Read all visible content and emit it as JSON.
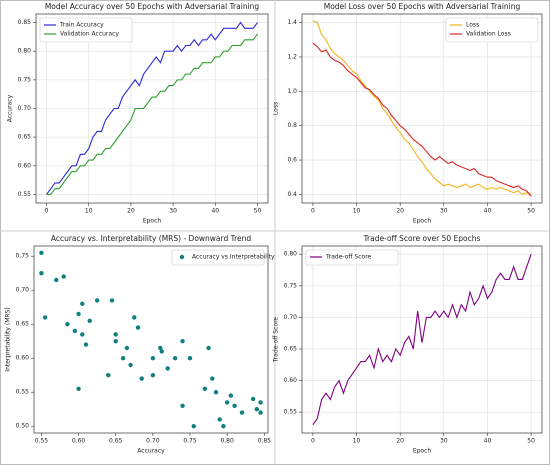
{
  "chart_data": [
    {
      "type": "line",
      "title": "Model Accuracy over 50 Epochs with Adversarial Training",
      "x_label": "Epoch",
      "y_label": "Accuracy",
      "x": [
        0,
        1,
        2,
        3,
        4,
        5,
        6,
        7,
        8,
        9,
        10,
        11,
        12,
        13,
        14,
        15,
        16,
        17,
        18,
        19,
        20,
        21,
        22,
        23,
        24,
        25,
        26,
        27,
        28,
        29,
        30,
        31,
        32,
        33,
        34,
        35,
        36,
        37,
        38,
        39,
        40,
        41,
        42,
        43,
        44,
        45,
        46,
        47,
        48,
        49,
        50
      ],
      "series": [
        {
          "name": "Train Accuracy",
          "color": "#2b2bd6",
          "values": [
            0.55,
            0.56,
            0.57,
            0.57,
            0.58,
            0.59,
            0.6,
            0.6,
            0.62,
            0.62,
            0.63,
            0.65,
            0.66,
            0.66,
            0.68,
            0.69,
            0.7,
            0.7,
            0.72,
            0.73,
            0.74,
            0.75,
            0.74,
            0.76,
            0.77,
            0.78,
            0.79,
            0.78,
            0.8,
            0.8,
            0.8,
            0.81,
            0.8,
            0.81,
            0.81,
            0.82,
            0.81,
            0.82,
            0.82,
            0.83,
            0.82,
            0.83,
            0.84,
            0.84,
            0.84,
            0.84,
            0.85,
            0.84,
            0.84,
            0.84,
            0.85
          ]
        },
        {
          "name": "Validation Accuracy",
          "color": "#2ca02c",
          "values": [
            0.55,
            0.55,
            0.56,
            0.56,
            0.57,
            0.58,
            0.59,
            0.59,
            0.6,
            0.6,
            0.61,
            0.61,
            0.62,
            0.62,
            0.63,
            0.63,
            0.64,
            0.65,
            0.66,
            0.67,
            0.68,
            0.7,
            0.7,
            0.7,
            0.71,
            0.72,
            0.72,
            0.73,
            0.73,
            0.74,
            0.74,
            0.75,
            0.75,
            0.76,
            0.76,
            0.77,
            0.77,
            0.78,
            0.78,
            0.78,
            0.79,
            0.79,
            0.8,
            0.8,
            0.81,
            0.81,
            0.81,
            0.82,
            0.82,
            0.82,
            0.83
          ]
        }
      ],
      "xlim": [
        -2.5,
        52.5
      ],
      "xticks": [
        0,
        10,
        20,
        30,
        40,
        50
      ],
      "ylim": [
        0.535,
        0.865
      ],
      "yticks": [
        0.55,
        {
          "value": 0.6,
          "label": "0.60"
        },
        0.65,
        {
          "value": 0.7,
          "label": "0.70"
        },
        0.75,
        {
          "value": 0.8,
          "label": "0.80"
        },
        0.85
      ],
      "grid": true,
      "legend": "upper-left"
    },
    {
      "type": "line",
      "title": "Model Loss over 50 Epochs with Adversarial Training",
      "x_label": "Epoch",
      "y_label": "Loss",
      "x": [
        0,
        1,
        2,
        3,
        4,
        5,
        6,
        7,
        8,
        9,
        10,
        11,
        12,
        13,
        14,
        15,
        16,
        17,
        18,
        19,
        20,
        21,
        22,
        23,
        24,
        25,
        26,
        27,
        28,
        29,
        30,
        31,
        32,
        33,
        34,
        35,
        36,
        37,
        38,
        39,
        40,
        41,
        42,
        43,
        44,
        45,
        46,
        47,
        48,
        49,
        50
      ],
      "series": [
        {
          "name": "Loss",
          "color": "#f5b31b",
          "values": [
            1.41,
            1.4,
            1.33,
            1.3,
            1.25,
            1.22,
            1.2,
            1.18,
            1.15,
            1.12,
            1.1,
            1.06,
            1.03,
            1.0,
            0.97,
            0.95,
            0.9,
            0.87,
            0.83,
            0.79,
            0.76,
            0.72,
            0.7,
            0.66,
            0.62,
            0.59,
            0.55,
            0.52,
            0.49,
            0.47,
            0.45,
            0.46,
            0.45,
            0.44,
            0.45,
            0.46,
            0.44,
            0.45,
            0.46,
            0.44,
            0.43,
            0.44,
            0.43,
            0.44,
            0.43,
            0.42,
            0.41,
            0.42,
            0.4,
            0.41,
            0.4
          ]
        },
        {
          "name": "Validation Loss",
          "color": "#d62728",
          "values": [
            1.28,
            1.26,
            1.23,
            1.24,
            1.2,
            1.18,
            1.17,
            1.15,
            1.12,
            1.1,
            1.08,
            1.05,
            1.02,
            1.01,
            0.98,
            0.96,
            0.92,
            0.9,
            0.86,
            0.83,
            0.8,
            0.78,
            0.75,
            0.72,
            0.7,
            0.68,
            0.65,
            0.62,
            0.6,
            0.62,
            0.6,
            0.58,
            0.59,
            0.57,
            0.56,
            0.55,
            0.54,
            0.55,
            0.52,
            0.51,
            0.5,
            0.5,
            0.48,
            0.47,
            0.46,
            0.45,
            0.44,
            0.45,
            0.43,
            0.42,
            0.39
          ]
        }
      ],
      "xlim": [
        -2.5,
        52.5
      ],
      "xticks": [
        0,
        10,
        20,
        30,
        40,
        50
      ],
      "ylim": [
        0.35,
        1.45
      ],
      "yticks": [
        0.4,
        0.6,
        0.8,
        {
          "value": 1,
          "label": "1.0"
        },
        1.2,
        1.4
      ],
      "grid": true,
      "legend": "upper-right"
    },
    {
      "type": "scatter",
      "title": "Accuracy vs. Interpretability (MRS) - Downward Trend",
      "x_label": "Accuracy",
      "y_label": "Interpretability (MRS)",
      "x": [
        0.55,
        0.55,
        0.555,
        0.57,
        0.58,
        0.585,
        0.595,
        0.6,
        0.6,
        0.605,
        0.605,
        0.61,
        0.615,
        0.625,
        0.64,
        0.645,
        0.65,
        0.65,
        0.66,
        0.665,
        0.67,
        0.675,
        0.68,
        0.685,
        0.7,
        0.7,
        0.71,
        0.712,
        0.72,
        0.73,
        0.74,
        0.74,
        0.75,
        0.755,
        0.77,
        0.775,
        0.78,
        0.785,
        0.79,
        0.795,
        0.8,
        0.805,
        0.81,
        0.82,
        0.835,
        0.84,
        0.845,
        0.845
      ],
      "series": [
        {
          "name": "Accuracy vs Interpretability",
          "color": "#0f7f80",
          "values": [
            0.755,
            0.725,
            0.66,
            0.715,
            0.72,
            0.65,
            0.64,
            0.665,
            0.555,
            0.68,
            0.635,
            0.62,
            0.655,
            0.685,
            0.575,
            0.685,
            0.635,
            0.625,
            0.6,
            0.615,
            0.59,
            0.66,
            0.645,
            0.57,
            0.6,
            0.575,
            0.615,
            0.61,
            0.585,
            0.6,
            0.625,
            0.53,
            0.6,
            0.5,
            0.555,
            0.615,
            0.57,
            0.55,
            0.51,
            0.5,
            0.535,
            0.545,
            0.53,
            0.52,
            0.54,
            0.525,
            0.52,
            0.535
          ]
        }
      ],
      "xlim": [
        0.54,
        0.855
      ],
      "xticks": [
        0.55,
        {
          "value": 0.6,
          "label": "0.60"
        },
        0.65,
        {
          "value": 0.7,
          "label": "0.70"
        },
        0.75,
        {
          "value": 0.8,
          "label": "0.80"
        },
        0.85
      ],
      "ylim": [
        0.49,
        0.765
      ],
      "yticks": [
        {
          "value": 0.5,
          "label": "0.50"
        },
        0.55,
        {
          "value": 0.6,
          "label": "0.60"
        },
        0.65,
        {
          "value": 0.7,
          "label": "0.70"
        },
        0.75
      ],
      "grid": false,
      "legend": "upper-right"
    },
    {
      "type": "line",
      "title": "Trade-off Score over 50 Epochs",
      "x_label": "Epoch",
      "y_label": "Trade-off Score",
      "x": [
        0,
        1,
        2,
        3,
        4,
        5,
        6,
        7,
        8,
        9,
        10,
        11,
        12,
        13,
        14,
        15,
        16,
        17,
        18,
        19,
        20,
        21,
        22,
        23,
        24,
        25,
        26,
        27,
        28,
        29,
        30,
        31,
        32,
        33,
        34,
        35,
        36,
        37,
        38,
        39,
        40,
        41,
        42,
        43,
        44,
        45,
        46,
        47,
        48,
        49,
        50
      ],
      "series": [
        {
          "name": "Trade-off Score",
          "color": "#800080",
          "values": [
            0.53,
            0.54,
            0.57,
            0.58,
            0.57,
            0.59,
            0.6,
            0.58,
            0.6,
            0.61,
            0.62,
            0.63,
            0.63,
            0.64,
            0.62,
            0.65,
            0.63,
            0.64,
            0.63,
            0.65,
            0.64,
            0.66,
            0.67,
            0.65,
            0.71,
            0.66,
            0.7,
            0.7,
            0.71,
            0.7,
            0.71,
            0.7,
            0.72,
            0.7,
            0.72,
            0.71,
            0.74,
            0.72,
            0.73,
            0.75,
            0.73,
            0.74,
            0.76,
            0.77,
            0.76,
            0.76,
            0.78,
            0.76,
            0.76,
            0.78,
            0.8
          ]
        }
      ],
      "xlim": [
        -2.5,
        52.5
      ],
      "xticks": [
        0,
        10,
        20,
        30,
        40,
        50
      ],
      "ylim": [
        0.517,
        0.813
      ],
      "yticks": [
        0.55,
        {
          "value": 0.6,
          "label": "0.60"
        },
        0.65,
        {
          "value": 0.7,
          "label": "0.70"
        },
        0.75,
        {
          "value": 0.8,
          "label": "0.80"
        }
      ],
      "grid": true,
      "legend": "upper-left"
    }
  ]
}
